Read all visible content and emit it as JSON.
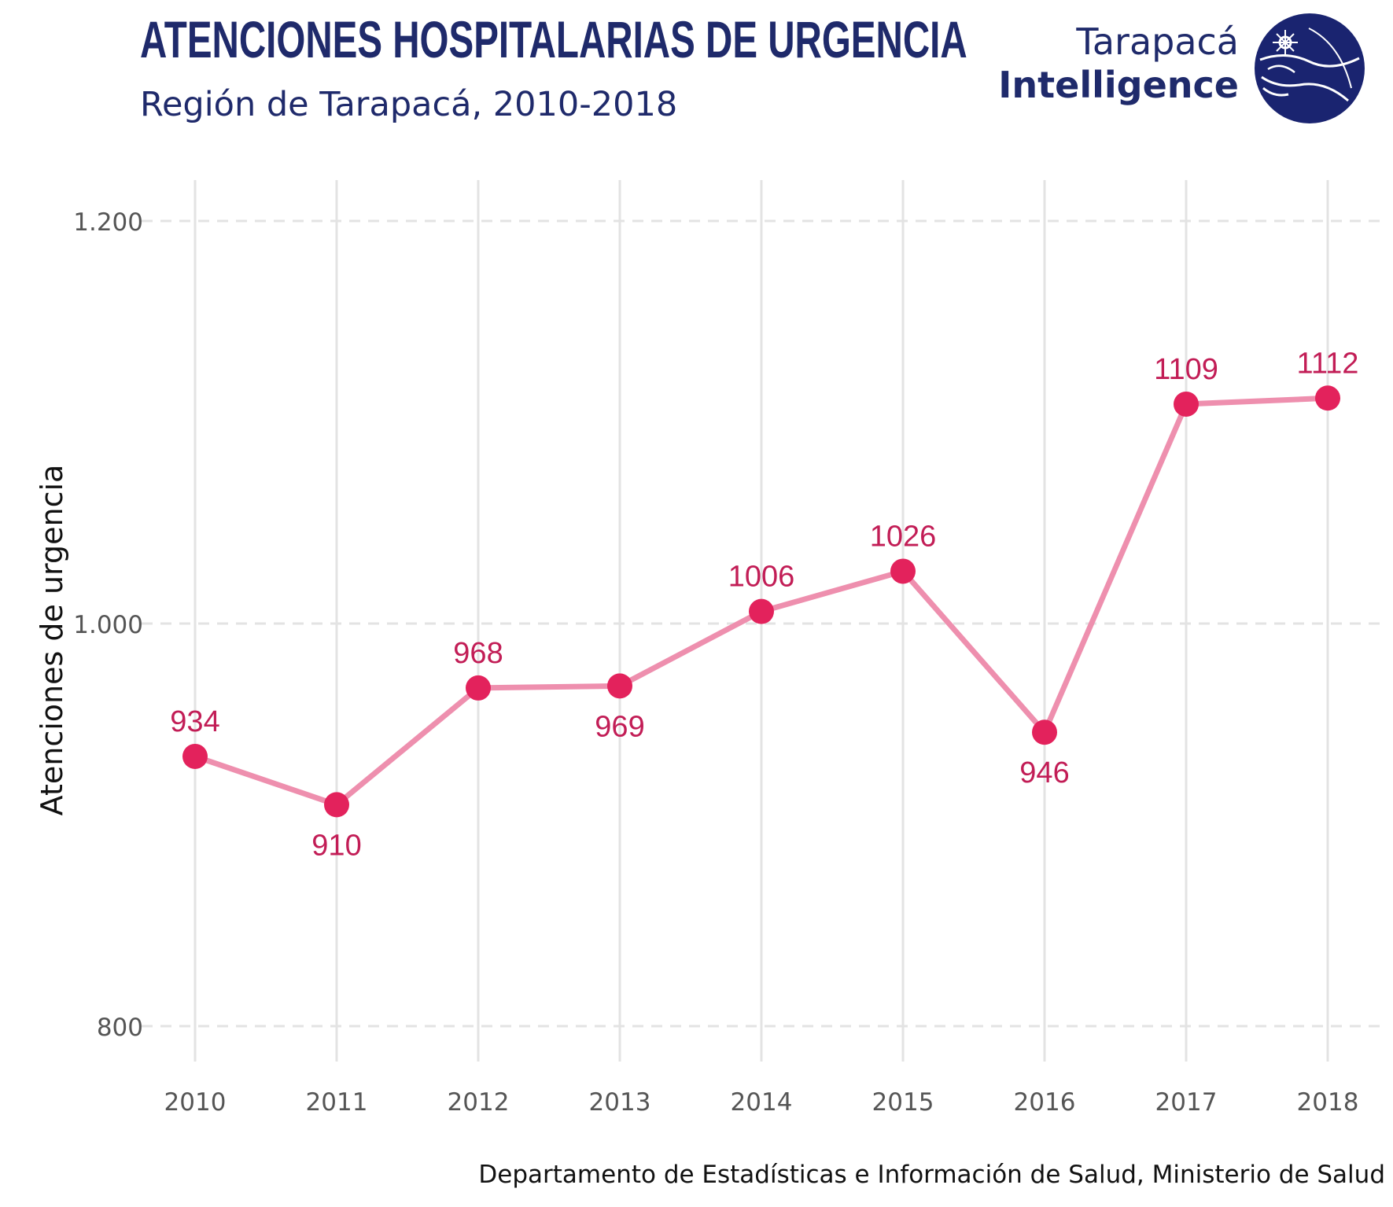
{
  "header": {
    "title": "ATENCIONES HOSPITALARIAS DE URGENCIA",
    "subtitle": "Región de Tarapacá, 2010-2018"
  },
  "logo": {
    "line1": "Tarapacá",
    "line2": "Intelligence",
    "color": "#1f2a6b"
  },
  "caption": "Departamento de Estadísticas e Información de Salud, Ministerio de Salud",
  "colors": {
    "line": "#ee8fae",
    "point": "#e3225c",
    "label": "#c21d56",
    "grid": "#e3e3e3",
    "tick_text": "#555555"
  },
  "chart_data": {
    "type": "line",
    "title": "ATENCIONES HOSPITALARIAS DE URGENCIA",
    "subtitle": "Región de Tarapacá, 2010-2018",
    "xlabel": "",
    "ylabel": "Atenciones de urgencia",
    "categories": [
      "2010",
      "2011",
      "2012",
      "2013",
      "2014",
      "2015",
      "2016",
      "2017",
      "2018"
    ],
    "values": [
      934,
      910,
      968,
      969,
      1006,
      1026,
      946,
      1109,
      1112
    ],
    "data_labels": [
      "934",
      "910",
      "968",
      "969",
      "1006",
      "1026",
      "946",
      "1109",
      "1112"
    ],
    "label_position": [
      "above",
      "below",
      "above",
      "below",
      "above",
      "above",
      "below",
      "above",
      "above"
    ],
    "ylim": [
      780,
      1220
    ],
    "yticks": [
      800,
      1000,
      1200
    ],
    "ytick_labels": [
      "800",
      "1.000",
      "1.200"
    ],
    "grid": true,
    "legend": "none"
  }
}
